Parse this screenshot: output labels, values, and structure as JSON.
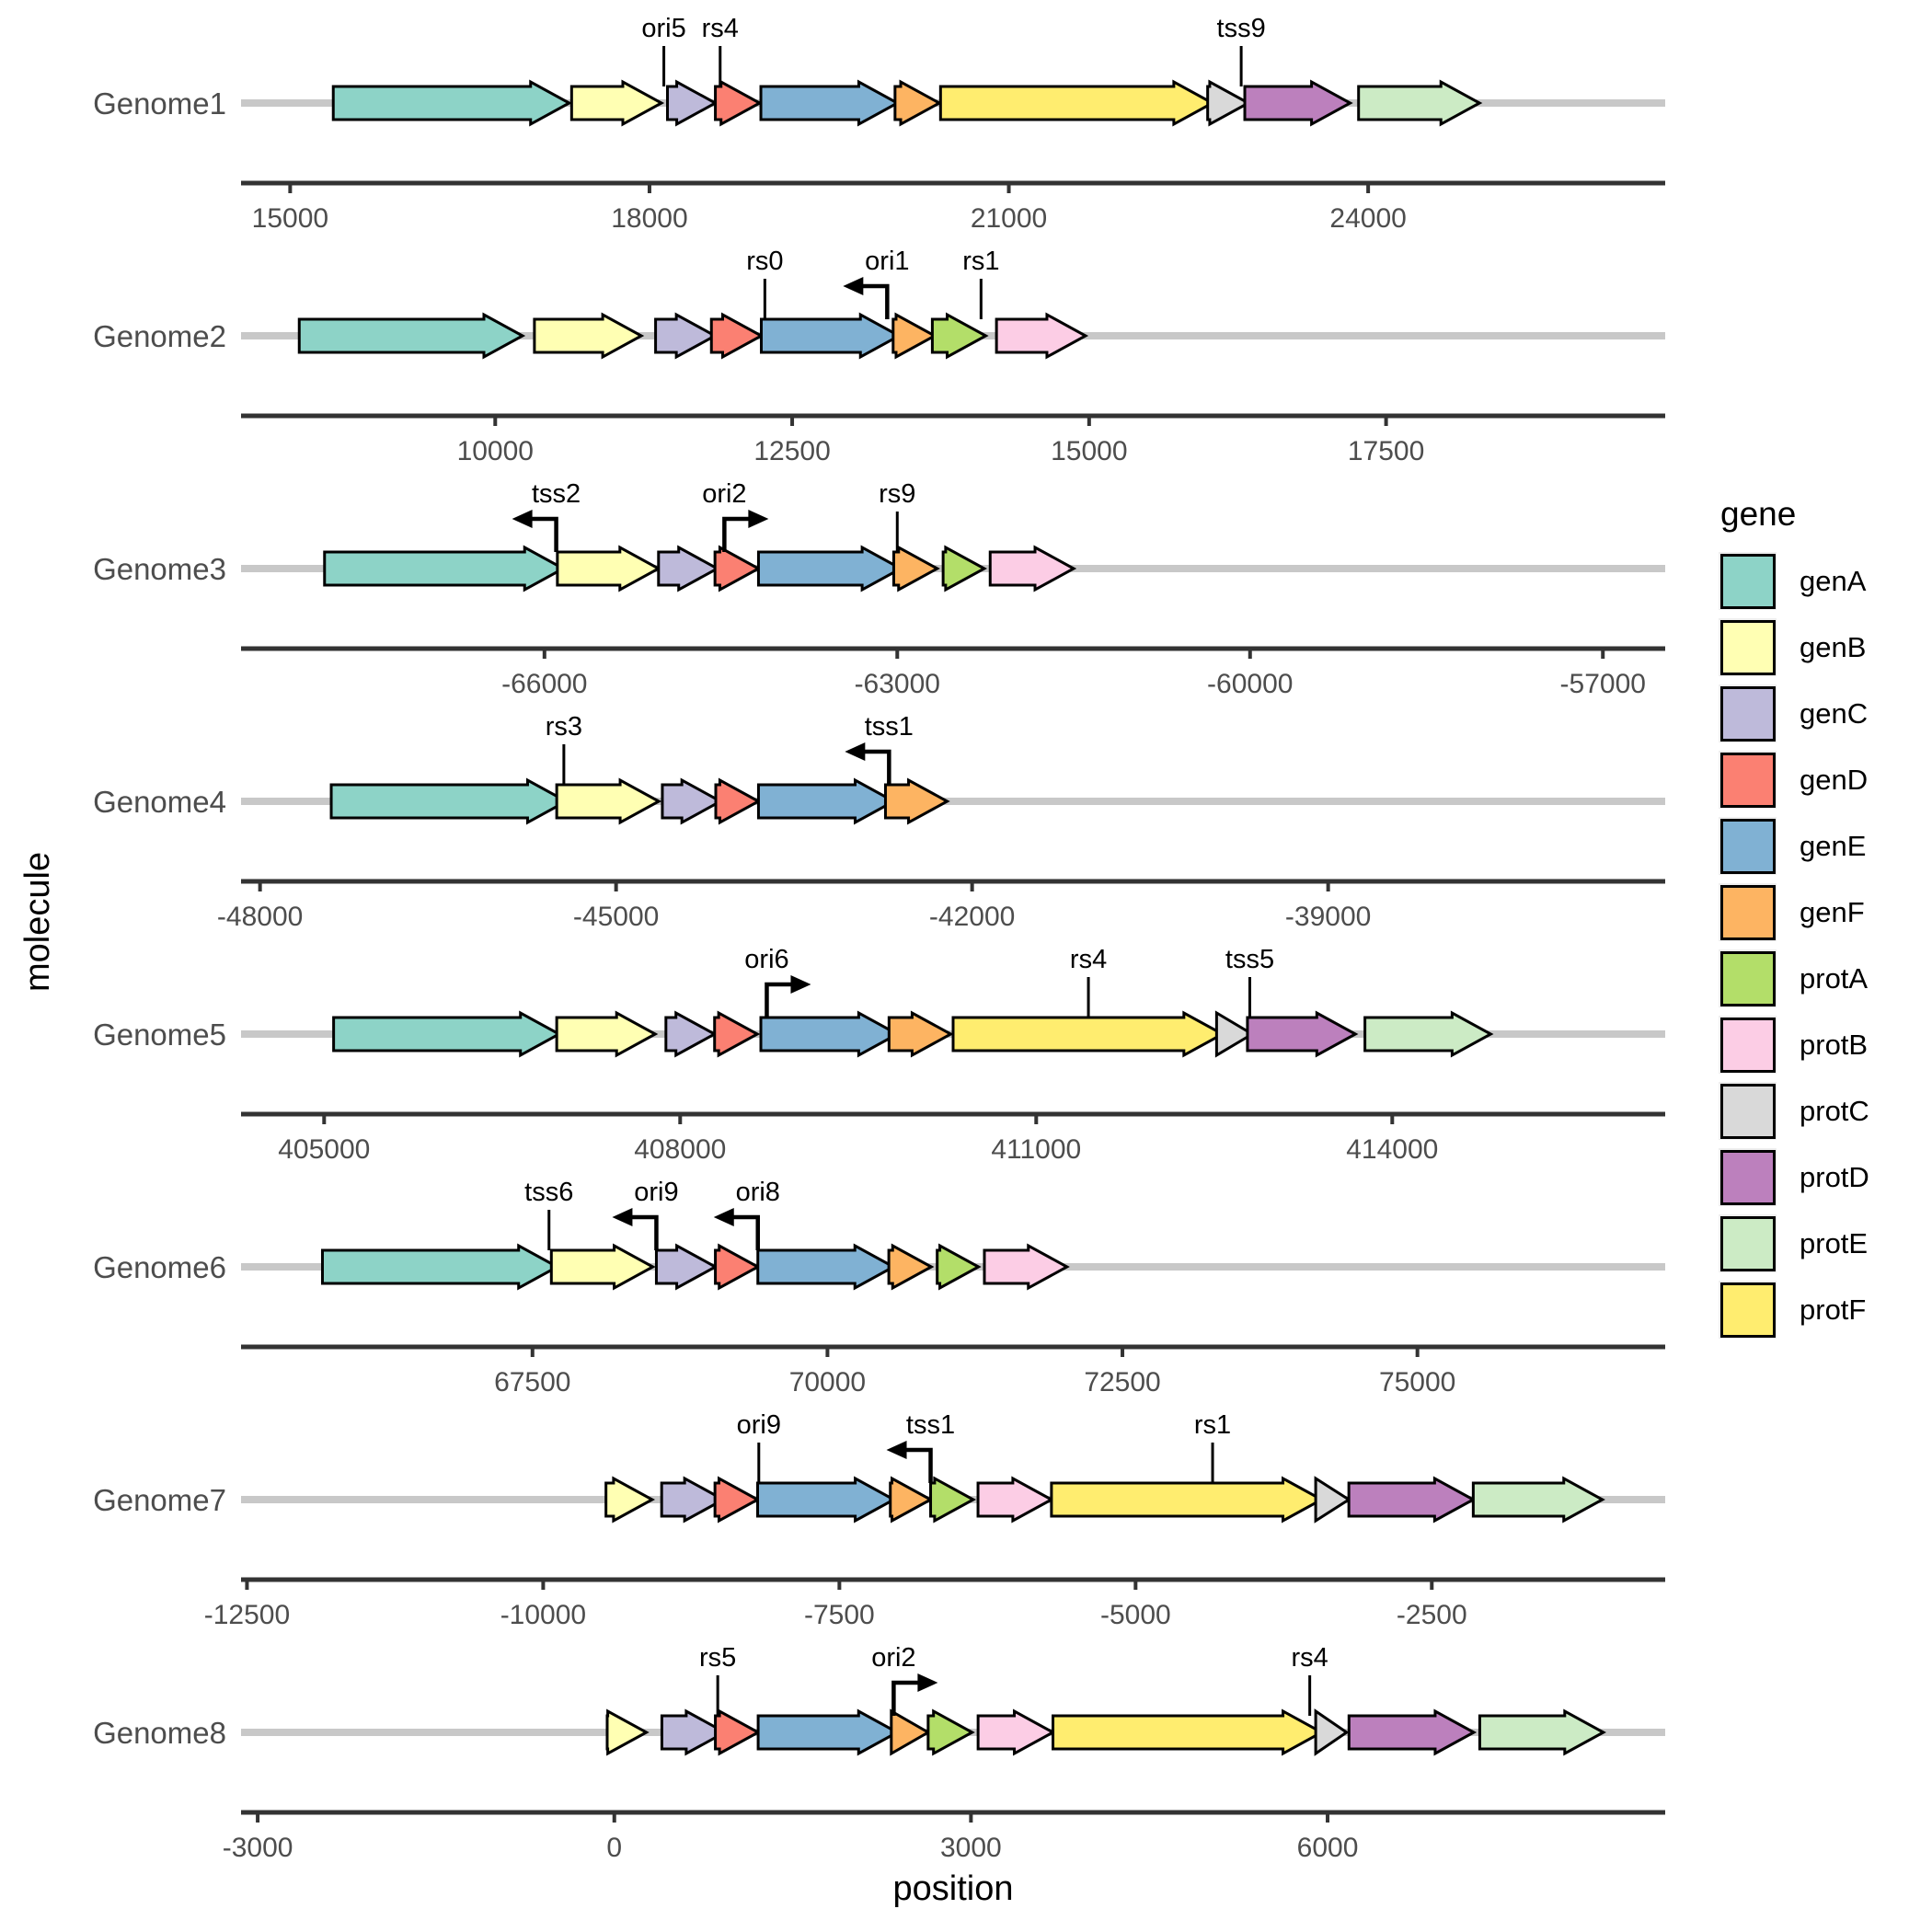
{
  "axis_titles": {
    "x": "position",
    "y": "molecule"
  },
  "legend": {
    "title": "gene",
    "entries": [
      {
        "label": "genA",
        "color": "#8DD3C7"
      },
      {
        "label": "genB",
        "color": "#FFFFB3"
      },
      {
        "label": "genC",
        "color": "#BEBADA"
      },
      {
        "label": "genD",
        "color": "#FB8072"
      },
      {
        "label": "genE",
        "color": "#80B1D3"
      },
      {
        "label": "genF",
        "color": "#FDB462"
      },
      {
        "label": "protA",
        "color": "#B3DE69"
      },
      {
        "label": "protB",
        "color": "#FCCDE5"
      },
      {
        "label": "protC",
        "color": "#D9D9D9"
      },
      {
        "label": "protD",
        "color": "#BC80BD"
      },
      {
        "label": "protE",
        "color": "#CCEBC5"
      },
      {
        "label": "protF",
        "color": "#FFED6F"
      }
    ]
  },
  "chart_data": {
    "type": "gene-arrows",
    "xlabel": "position",
    "ylabel": "molecule",
    "legend_title": "gene",
    "legend_position": "right",
    "grid": false,
    "colors": {
      "genA": "#8DD3C7",
      "genB": "#FFFFB3",
      "genC": "#BEBADA",
      "genD": "#FB8072",
      "genE": "#80B1D3",
      "genF": "#FDB462",
      "protA": "#B3DE69",
      "protB": "#FCCDE5",
      "protC": "#D9D9D9",
      "protD": "#BC80BD",
      "protE": "#CCEBC5",
      "protF": "#FFED6F"
    },
    "molecules": [
      {
        "name": "Genome1",
        "axis": {
          "min": 14590,
          "max": 26480,
          "ticks": [
            15000,
            18000,
            21000,
            24000
          ]
        },
        "genes": [
          {
            "gene": "genA",
            "start": 15360,
            "end": 17330
          },
          {
            "gene": "genB",
            "start": 17350,
            "end": 18100
          },
          {
            "gene": "genC",
            "start": 18150,
            "end": 18550
          },
          {
            "gene": "genD",
            "start": 18550,
            "end": 18920
          },
          {
            "gene": "genE",
            "start": 18930,
            "end": 20070
          },
          {
            "gene": "genF",
            "start": 20050,
            "end": 20420
          },
          {
            "gene": "protF",
            "start": 20430,
            "end": 22700
          },
          {
            "gene": "protC",
            "start": 22660,
            "end": 23000
          },
          {
            "gene": "protD",
            "start": 22970,
            "end": 23850
          },
          {
            "gene": "protE",
            "start": 23920,
            "end": 24930
          }
        ],
        "features": [
          {
            "label": "ori5",
            "position": 18120,
            "type": "line"
          },
          {
            "label": "rs4",
            "position": 18590,
            "type": "line"
          },
          {
            "label": "tss9",
            "position": 22940,
            "type": "line"
          }
        ]
      },
      {
        "name": "Genome2",
        "axis": {
          "min": 7860,
          "max": 19850,
          "ticks": [
            10000,
            12500,
            15000,
            17500
          ]
        },
        "genes": [
          {
            "gene": "genA",
            "start": 8350,
            "end": 10230
          },
          {
            "gene": "genB",
            "start": 10330,
            "end": 11230
          },
          {
            "gene": "genC",
            "start": 11350,
            "end": 11850
          },
          {
            "gene": "genD",
            "start": 11820,
            "end": 12240
          },
          {
            "gene": "genE",
            "start": 12240,
            "end": 13400
          },
          {
            "gene": "genF",
            "start": 13350,
            "end": 13700
          },
          {
            "gene": "protA",
            "start": 13680,
            "end": 14130
          },
          {
            "gene": "protB",
            "start": 14220,
            "end": 14970
          }
        ],
        "features": [
          {
            "label": "rs0",
            "position": 12270,
            "type": "line"
          },
          {
            "label": "ori1",
            "position": 13300,
            "type": "promoter-left"
          },
          {
            "label": "rs1",
            "position": 14090,
            "type": "line"
          }
        ]
      },
      {
        "name": "Genome3",
        "axis": {
          "min": -68580,
          "max": -56470,
          "ticks": [
            -66000,
            -63000,
            -60000,
            -57000
          ]
        },
        "genes": [
          {
            "gene": "genA",
            "start": -67870,
            "end": -65840
          },
          {
            "gene": "genB",
            "start": -65890,
            "end": -65030
          },
          {
            "gene": "genC",
            "start": -65030,
            "end": -64530
          },
          {
            "gene": "genD",
            "start": -64550,
            "end": -64180
          },
          {
            "gene": "genE",
            "start": -64180,
            "end": -62970
          },
          {
            "gene": "genF",
            "start": -63030,
            "end": -62660
          },
          {
            "gene": "protA",
            "start": -62610,
            "end": -62260
          },
          {
            "gene": "protB",
            "start": -62210,
            "end": -61500
          }
        ],
        "features": [
          {
            "label": "tss2",
            "position": -65900,
            "type": "promoter-left"
          },
          {
            "label": "ori2",
            "position": -64470,
            "type": "promoter-right"
          },
          {
            "label": "rs9",
            "position": -63000,
            "type": "line"
          }
        ]
      },
      {
        "name": "Genome4",
        "axis": {
          "min": -48160,
          "max": -36160,
          "ticks": [
            -48000,
            -45000,
            -42000,
            -39000
          ]
        },
        "genes": [
          {
            "gene": "genA",
            "start": -47400,
            "end": -45420
          },
          {
            "gene": "genB",
            "start": -45500,
            "end": -44640
          },
          {
            "gene": "genC",
            "start": -44610,
            "end": -44120
          },
          {
            "gene": "genD",
            "start": -44160,
            "end": -43800
          },
          {
            "gene": "genE",
            "start": -43800,
            "end": -42660
          },
          {
            "gene": "genF",
            "start": -42730,
            "end": -42210
          }
        ],
        "features": [
          {
            "label": "rs3",
            "position": -45440,
            "type": "line"
          },
          {
            "label": "tss1",
            "position": -42700,
            "type": "promoter-left"
          }
        ]
      },
      {
        "name": "Genome5",
        "axis": {
          "min": 404300,
          "max": 416300,
          "ticks": [
            405000,
            408000,
            411000,
            414000
          ]
        },
        "genes": [
          {
            "gene": "genA",
            "start": 405080,
            "end": 406980
          },
          {
            "gene": "genB",
            "start": 406960,
            "end": 407790
          },
          {
            "gene": "genC",
            "start": 407880,
            "end": 408290
          },
          {
            "gene": "genD",
            "start": 408290,
            "end": 408650
          },
          {
            "gene": "genE",
            "start": 408680,
            "end": 409830
          },
          {
            "gene": "genF",
            "start": 409760,
            "end": 410280
          },
          {
            "gene": "protF",
            "start": 410300,
            "end": 412570
          },
          {
            "gene": "protC",
            "start": 412520,
            "end": 412820
          },
          {
            "gene": "protD",
            "start": 412780,
            "end": 413690
          },
          {
            "gene": "protE",
            "start": 413770,
            "end": 414830
          }
        ],
        "features": [
          {
            "label": "ori6",
            "position": 408730,
            "type": "promoter-right"
          },
          {
            "label": "rs4",
            "position": 411440,
            "type": "line"
          },
          {
            "label": "tss5",
            "position": 412800,
            "type": "line"
          }
        ]
      },
      {
        "name": "Genome6",
        "axis": {
          "min": 65030,
          "max": 77100,
          "ticks": [
            67500,
            70000,
            72500,
            75000
          ]
        },
        "genes": [
          {
            "gene": "genA",
            "start": 65720,
            "end": 67710
          },
          {
            "gene": "genB",
            "start": 67660,
            "end": 68520
          },
          {
            "gene": "genC",
            "start": 68550,
            "end": 69050
          },
          {
            "gene": "genD",
            "start": 69050,
            "end": 69410
          },
          {
            "gene": "genE",
            "start": 69410,
            "end": 70560
          },
          {
            "gene": "genF",
            "start": 70520,
            "end": 70880
          },
          {
            "gene": "protA",
            "start": 70930,
            "end": 71280
          },
          {
            "gene": "protB",
            "start": 71330,
            "end": 72030
          }
        ],
        "features": [
          {
            "label": "tss6",
            "position": 67640,
            "type": "line"
          },
          {
            "label": "ori9",
            "position": 68550,
            "type": "promoter-left"
          },
          {
            "label": "ori8",
            "position": 69410,
            "type": "promoter-left"
          }
        ]
      },
      {
        "name": "Genome7",
        "axis": {
          "min": -12550,
          "max": -530,
          "ticks": [
            -12500,
            -10000,
            -7500,
            -5000,
            -2500
          ]
        },
        "genes": [
          {
            "gene": "genB",
            "start": -9470,
            "end": -9080
          },
          {
            "gene": "genC",
            "start": -9000,
            "end": -8480
          },
          {
            "gene": "genD",
            "start": -8550,
            "end": -8190
          },
          {
            "gene": "genE",
            "start": -8190,
            "end": -7040
          },
          {
            "gene": "genF",
            "start": -7070,
            "end": -6730
          },
          {
            "gene": "protA",
            "start": -6730,
            "end": -6370
          },
          {
            "gene": "protB",
            "start": -6330,
            "end": -5710
          },
          {
            "gene": "protF",
            "start": -5710,
            "end": -3430
          },
          {
            "gene": "protC",
            "start": -3480,
            "end": -3200
          },
          {
            "gene": "protD",
            "start": -3200,
            "end": -2150
          },
          {
            "gene": "protE",
            "start": -2150,
            "end": -1060
          }
        ],
        "features": [
          {
            "label": "ori9",
            "position": -8180,
            "type": "line"
          },
          {
            "label": "tss1",
            "position": -6730,
            "type": "promoter-left"
          },
          {
            "label": "rs1",
            "position": -4350,
            "type": "line"
          }
        ]
      },
      {
        "name": "Genome8",
        "axis": {
          "min": -3140,
          "max": 8840,
          "ticks": [
            -3000,
            0,
            3000,
            6000
          ]
        },
        "genes": [
          {
            "gene": "genB",
            "start": -60,
            "end": 270
          },
          {
            "gene": "genC",
            "start": 400,
            "end": 930
          },
          {
            "gene": "genD",
            "start": 850,
            "end": 1210
          },
          {
            "gene": "genE",
            "start": 1210,
            "end": 2380
          },
          {
            "gene": "genF",
            "start": 2330,
            "end": 2640
          },
          {
            "gene": "protA",
            "start": 2640,
            "end": 3010
          },
          {
            "gene": "protB",
            "start": 3060,
            "end": 3690
          },
          {
            "gene": "protF",
            "start": 3690,
            "end": 5950
          },
          {
            "gene": "protC",
            "start": 5900,
            "end": 6160
          },
          {
            "gene": "protD",
            "start": 6180,
            "end": 7230
          },
          {
            "gene": "protE",
            "start": 7280,
            "end": 8320
          }
        ],
        "features": [
          {
            "label": "rs5",
            "position": 870,
            "type": "line"
          },
          {
            "label": "ori2",
            "position": 2350,
            "type": "promoter-right"
          },
          {
            "label": "rs4",
            "position": 5850,
            "type": "line"
          }
        ]
      }
    ]
  }
}
